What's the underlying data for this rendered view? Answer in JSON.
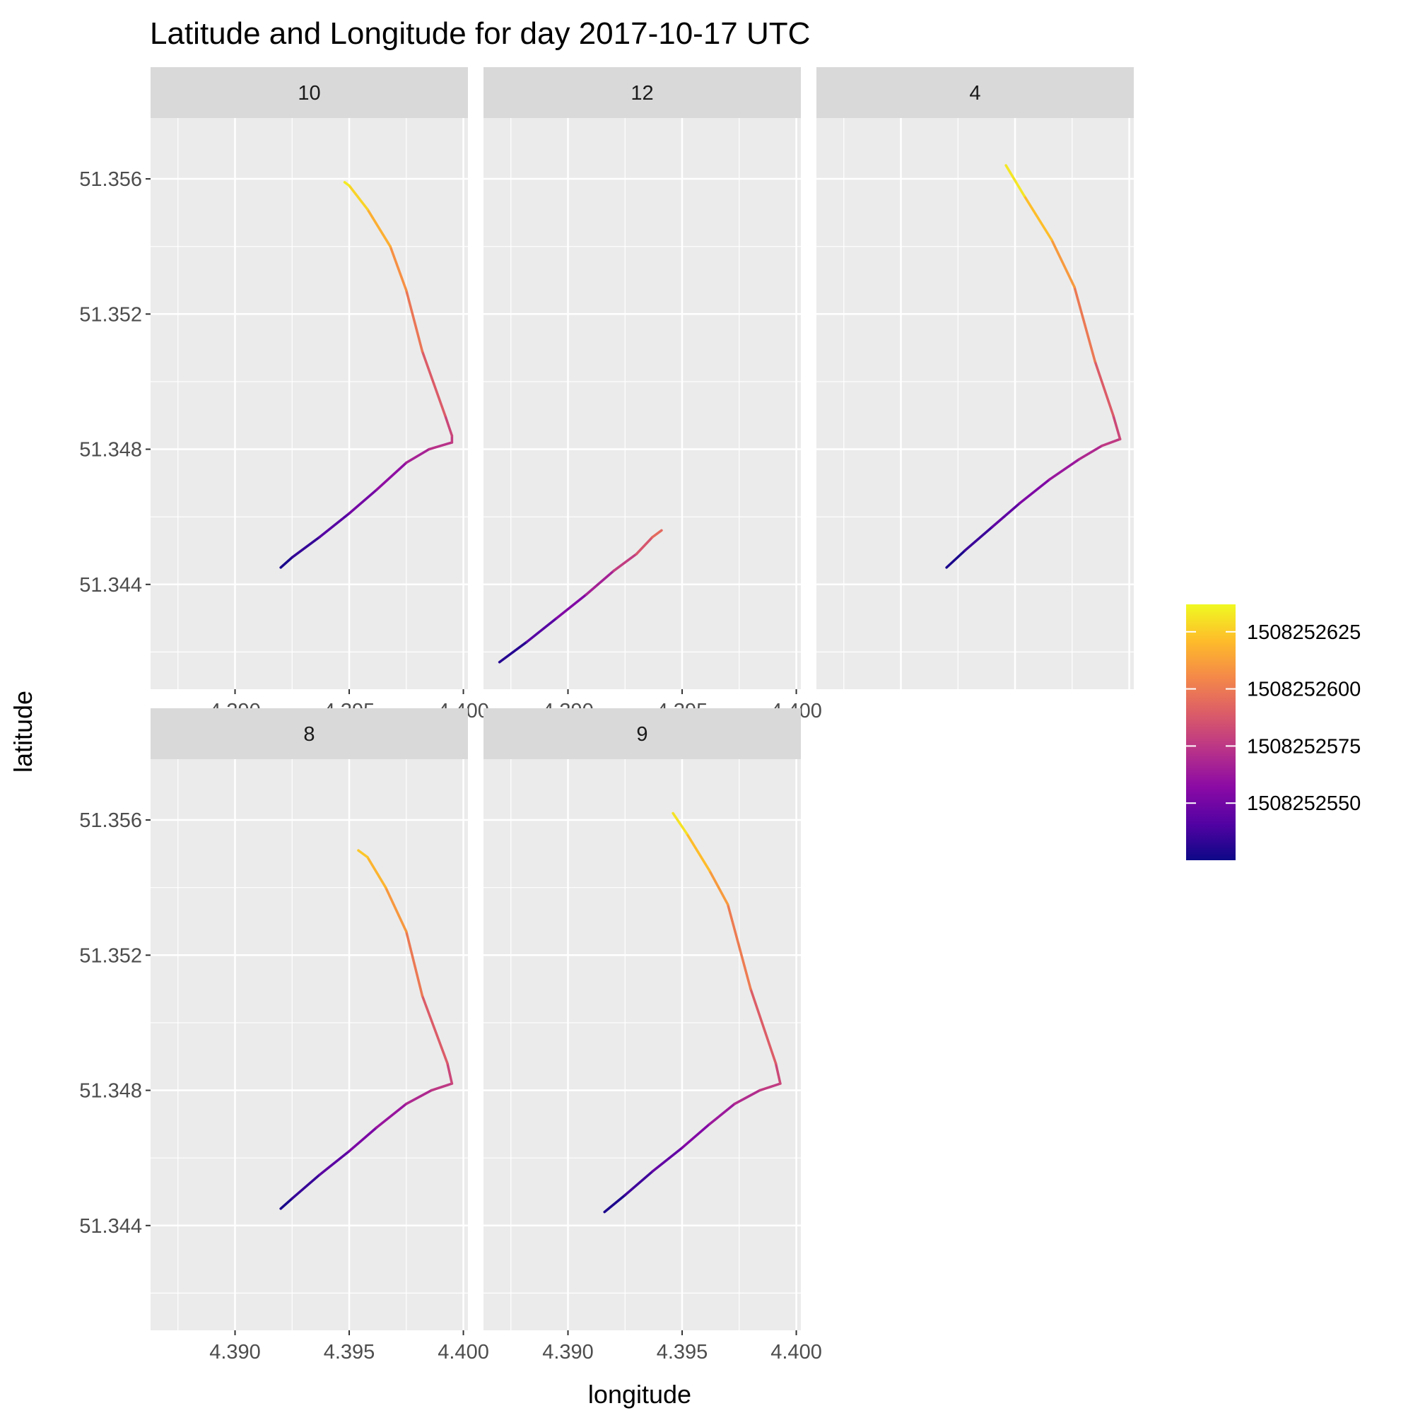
{
  "chart_data": {
    "type": "line",
    "title": "Latitude and Longitude for day 2017-10-17 UTC",
    "xlabel": "longitude",
    "ylabel": "latitude",
    "xlim": [
      4.3863,
      4.4002
    ],
    "ylim": [
      51.3409,
      51.3578
    ],
    "x_ticks": [
      4.39,
      4.395,
      4.4
    ],
    "x_tick_labels": [
      "4.390",
      "4.395",
      "4.400"
    ],
    "y_ticks": [
      51.344,
      51.348,
      51.352,
      51.356
    ],
    "y_tick_labels": [
      "51.344",
      "51.348",
      "51.352",
      "51.356"
    ],
    "grid": true,
    "facet_by": "",
    "color_scale": {
      "name": "",
      "palette": "plasma",
      "range": [
        1508252525,
        1508252637
      ],
      "breaks": [
        1508252550,
        1508252575,
        1508252600,
        1508252625
      ],
      "break_labels": [
        "1508252550",
        "1508252575",
        "1508252600",
        "1508252625"
      ],
      "stops": [
        "#0d0887",
        "#5302a3",
        "#8b0aa5",
        "#b83289",
        "#db5c68",
        "#f48849",
        "#febc2a",
        "#f0f921"
      ],
      "legend_position": "right"
    },
    "series": [
      {
        "facet": "10",
        "points": [
          {
            "x": 4.392,
            "y": 51.3445,
            "t": 1508252525
          },
          {
            "x": 4.3925,
            "y": 51.3448,
            "t": 1508252530
          },
          {
            "x": 4.3937,
            "y": 51.3454,
            "t": 1508252538
          },
          {
            "x": 4.395,
            "y": 51.3461,
            "t": 1508252546
          },
          {
            "x": 4.3962,
            "y": 51.3468,
            "t": 1508252554
          },
          {
            "x": 4.3975,
            "y": 51.3476,
            "t": 1508252563
          },
          {
            "x": 4.3985,
            "y": 51.348,
            "t": 1508252570
          },
          {
            "x": 4.3995,
            "y": 51.3482,
            "t": 1508252576
          },
          {
            "x": 4.3995,
            "y": 51.3484,
            "t": 1508252578
          },
          {
            "x": 4.3992,
            "y": 51.349,
            "t": 1508252584
          },
          {
            "x": 4.3982,
            "y": 51.3509,
            "t": 1508252594
          },
          {
            "x": 4.3975,
            "y": 51.3527,
            "t": 1508252603
          },
          {
            "x": 4.3968,
            "y": 51.354,
            "t": 1508252612
          },
          {
            "x": 4.3958,
            "y": 51.3551,
            "t": 1508252622
          },
          {
            "x": 4.395,
            "y": 51.3558,
            "t": 1508252632
          },
          {
            "x": 4.3948,
            "y": 51.3559,
            "t": 1508252634
          }
        ]
      },
      {
        "facet": "12",
        "points": [
          {
            "x": 4.387,
            "y": 51.3417,
            "t": 1508252525
          },
          {
            "x": 4.3882,
            "y": 51.3423,
            "t": 1508252536
          },
          {
            "x": 4.3895,
            "y": 51.343,
            "t": 1508252548
          },
          {
            "x": 4.3908,
            "y": 51.3437,
            "t": 1508252560
          },
          {
            "x": 4.392,
            "y": 51.3444,
            "t": 1508252572
          },
          {
            "x": 4.393,
            "y": 51.3449,
            "t": 1508252582
          },
          {
            "x": 4.3937,
            "y": 51.3454,
            "t": 1508252591
          },
          {
            "x": 4.3941,
            "y": 51.3456,
            "t": 1508252597
          }
        ]
      },
      {
        "facet": "4",
        "points": [
          {
            "x": 4.392,
            "y": 51.3445,
            "t": 1508252525
          },
          {
            "x": 4.3928,
            "y": 51.345,
            "t": 1508252531
          },
          {
            "x": 4.394,
            "y": 51.3457,
            "t": 1508252540
          },
          {
            "x": 4.3952,
            "y": 51.3464,
            "t": 1508252549
          },
          {
            "x": 4.3965,
            "y": 51.3471,
            "t": 1508252558
          },
          {
            "x": 4.3978,
            "y": 51.3477,
            "t": 1508252566
          },
          {
            "x": 4.3988,
            "y": 51.3481,
            "t": 1508252573
          },
          {
            "x": 4.3996,
            "y": 51.3483,
            "t": 1508252579
          },
          {
            "x": 4.3993,
            "y": 51.349,
            "t": 1508252584
          },
          {
            "x": 4.3985,
            "y": 51.3506,
            "t": 1508252594
          },
          {
            "x": 4.3976,
            "y": 51.3528,
            "t": 1508252605
          },
          {
            "x": 4.3966,
            "y": 51.3542,
            "t": 1508252616
          },
          {
            "x": 4.3954,
            "y": 51.3555,
            "t": 1508252627
          },
          {
            "x": 4.3946,
            "y": 51.3564,
            "t": 1508252637
          }
        ]
      },
      {
        "facet": "8",
        "points": [
          {
            "x": 4.392,
            "y": 51.3445,
            "t": 1508252525
          },
          {
            "x": 4.3925,
            "y": 51.3448,
            "t": 1508252530
          },
          {
            "x": 4.3937,
            "y": 51.3455,
            "t": 1508252539
          },
          {
            "x": 4.395,
            "y": 51.3462,
            "t": 1508252548
          },
          {
            "x": 4.3962,
            "y": 51.3469,
            "t": 1508252557
          },
          {
            "x": 4.3975,
            "y": 51.3476,
            "t": 1508252566
          },
          {
            "x": 4.3986,
            "y": 51.348,
            "t": 1508252573
          },
          {
            "x": 4.3995,
            "y": 51.3482,
            "t": 1508252578
          },
          {
            "x": 4.3993,
            "y": 51.3488,
            "t": 1508252584
          },
          {
            "x": 4.3982,
            "y": 51.3508,
            "t": 1508252594
          },
          {
            "x": 4.3975,
            "y": 51.3527,
            "t": 1508252605
          },
          {
            "x": 4.3966,
            "y": 51.354,
            "t": 1508252615
          },
          {
            "x": 4.3958,
            "y": 51.3549,
            "t": 1508252622
          },
          {
            "x": 4.3954,
            "y": 51.3551,
            "t": 1508252625
          }
        ]
      },
      {
        "facet": "9",
        "points": [
          {
            "x": 4.3916,
            "y": 51.3444,
            "t": 1508252525
          },
          {
            "x": 4.3925,
            "y": 51.3449,
            "t": 1508252532
          },
          {
            "x": 4.3937,
            "y": 51.3456,
            "t": 1508252541
          },
          {
            "x": 4.395,
            "y": 51.3463,
            "t": 1508252550
          },
          {
            "x": 4.3962,
            "y": 51.347,
            "t": 1508252559
          },
          {
            "x": 4.3973,
            "y": 51.3476,
            "t": 1508252567
          },
          {
            "x": 4.3984,
            "y": 51.348,
            "t": 1508252574
          },
          {
            "x": 4.3993,
            "y": 51.3482,
            "t": 1508252579
          },
          {
            "x": 4.3991,
            "y": 51.3488,
            "t": 1508252584
          },
          {
            "x": 4.398,
            "y": 51.351,
            "t": 1508252595
          },
          {
            "x": 4.397,
            "y": 51.3535,
            "t": 1508252606
          },
          {
            "x": 4.3962,
            "y": 51.3545,
            "t": 1508252615
          },
          {
            "x": 4.3952,
            "y": 51.3556,
            "t": 1508252627
          },
          {
            "x": 4.3946,
            "y": 51.3562,
            "t": 1508252635
          }
        ]
      }
    ]
  }
}
